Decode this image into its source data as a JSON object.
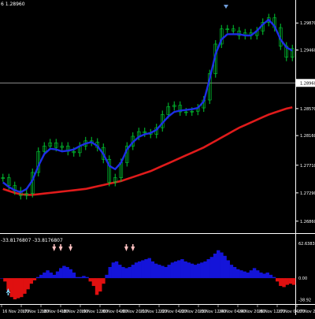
{
  "header": {
    "symbol_prefix": "6",
    "info": "1.28960"
  },
  "oscillator": {
    "value_1": "-33.8176807",
    "value_2": "-33.8176807"
  },
  "colors": {
    "background": "#000000",
    "grid": "#ffffff",
    "candle": "#00cc33",
    "ma_fast": "#1d2ee6",
    "ma_slow": "#e01b1b",
    "hist_positive": "#1414d9",
    "hist_negative": "#e01010",
    "buy_arrow": "#7fd8ff",
    "sell_arrow": "#ffc0c0",
    "axis_text": "#ffffff",
    "marker": "#6f9cd8"
  },
  "chart_data": [
    {
      "type": "line",
      "title": "",
      "chart_kind": "candlestick price chart with moving averages",
      "y_ticks": [
        "1.29870",
        "1.29460",
        "1.28960",
        "1.28570",
        "1.28160",
        "1.27710",
        "1.27290",
        "1.26860"
      ],
      "current_price": "1.28960",
      "ylim": [
        1.2675,
        1.301
      ],
      "x_tick_labels": [
        "16 Nov 20:00",
        "17 Nov 12:00",
        "18 Nov 04:00",
        "18 Nov 20:00",
        "19 Nov 12:00",
        "20 Nov 04:00",
        "20 Nov 20:00",
        "21 Nov 12:00",
        "22 Nov 04:00",
        "22 Nov 20:00",
        "23 Nov 12:00",
        "24 Nov 04:00",
        "24 Nov 20:00",
        "26 Nov 12:00",
        "27 Nov 04:00",
        "27 Nov 20:00"
      ],
      "series": [
        {
          "role": "price",
          "values": [
            1.2752,
            1.274,
            1.2732,
            1.2725,
            1.2728,
            1.276,
            1.2792,
            1.28,
            1.2805,
            1.2798,
            1.28,
            1.2792,
            1.279,
            1.28,
            1.2808,
            1.2806,
            1.2798,
            1.278,
            1.2745,
            1.2752,
            1.2775,
            1.28,
            1.2815,
            1.2822,
            1.282,
            1.2818,
            1.2828,
            1.2848,
            1.286,
            1.2862,
            1.2852,
            1.2852,
            1.2853,
            1.2858,
            1.287,
            1.291,
            1.2955,
            1.2978,
            1.2978,
            1.2975,
            1.2968,
            1.2972,
            1.2968,
            1.2975,
            1.2988,
            1.2995,
            1.298,
            1.2952,
            1.2935,
            1.2948
          ]
        },
        {
          "role": "fast_ma",
          "values": [
            1.2745,
            1.2738,
            1.2733,
            1.273,
            1.2735,
            1.2748,
            1.277,
            1.2788,
            1.2796,
            1.2795,
            1.2792,
            1.2793,
            1.2795,
            1.28,
            1.2804,
            1.2806,
            1.28,
            1.2788,
            1.277,
            1.2765,
            1.2775,
            1.2795,
            1.2806,
            1.2814,
            1.2818,
            1.282,
            1.2825,
            1.2835,
            1.2845,
            1.2852,
            1.2854,
            1.2855,
            1.2856,
            1.2858,
            1.2868,
            1.2902,
            1.294,
            1.2962,
            1.297,
            1.297,
            1.297,
            1.2968,
            1.2968,
            1.2975,
            1.2985,
            1.2992,
            1.2982,
            1.2962,
            1.295,
            1.2945
          ]
        },
        {
          "role": "slow_ma",
          "values": [
            1.2735,
            1.2732,
            1.2729,
            1.2727,
            1.2726,
            1.2726,
            1.2727,
            1.2728,
            1.2729,
            1.273,
            1.2731,
            1.2732,
            1.2733,
            1.2734,
            1.2735,
            1.2737,
            1.2739,
            1.2741,
            1.2743,
            1.2745,
            1.2747,
            1.275,
            1.2753,
            1.2756,
            1.2759,
            1.2762,
            1.2766,
            1.277,
            1.2774,
            1.2778,
            1.2782,
            1.2786,
            1.279,
            1.2794,
            1.2798,
            1.2803,
            1.2808,
            1.2813,
            1.2818,
            1.2823,
            1.2828,
            1.2832,
            1.2836,
            1.284,
            1.2844,
            1.2848,
            1.2851,
            1.2854,
            1.2857,
            1.2859
          ]
        }
      ]
    },
    {
      "type": "bar",
      "title": "",
      "y_ticks": [
        "62.63831",
        "0.00",
        "-38.92"
      ],
      "ylim": [
        -45,
        75
      ],
      "values": [
        0,
        -6,
        -22,
        -34,
        -38,
        -36,
        -34,
        -28,
        -20,
        -10,
        -4,
        2,
        6,
        10,
        14,
        10,
        6,
        12,
        18,
        22,
        20,
        16,
        10,
        2,
        2,
        4,
        2,
        -6,
        -14,
        -30,
        -24,
        -10,
        6,
        20,
        28,
        30,
        24,
        20,
        18,
        20,
        24,
        28,
        30,
        32,
        34,
        36,
        30,
        26,
        24,
        22,
        20,
        24,
        28,
        30,
        32,
        34,
        30,
        28,
        26,
        24,
        26,
        28,
        30,
        34,
        38,
        44,
        50,
        46,
        40,
        32,
        24,
        20,
        16,
        14,
        12,
        10,
        14,
        18,
        14,
        10,
        8,
        10,
        6,
        2,
        -6,
        -14,
        -16,
        -12,
        -10,
        -12
      ]
    }
  ]
}
